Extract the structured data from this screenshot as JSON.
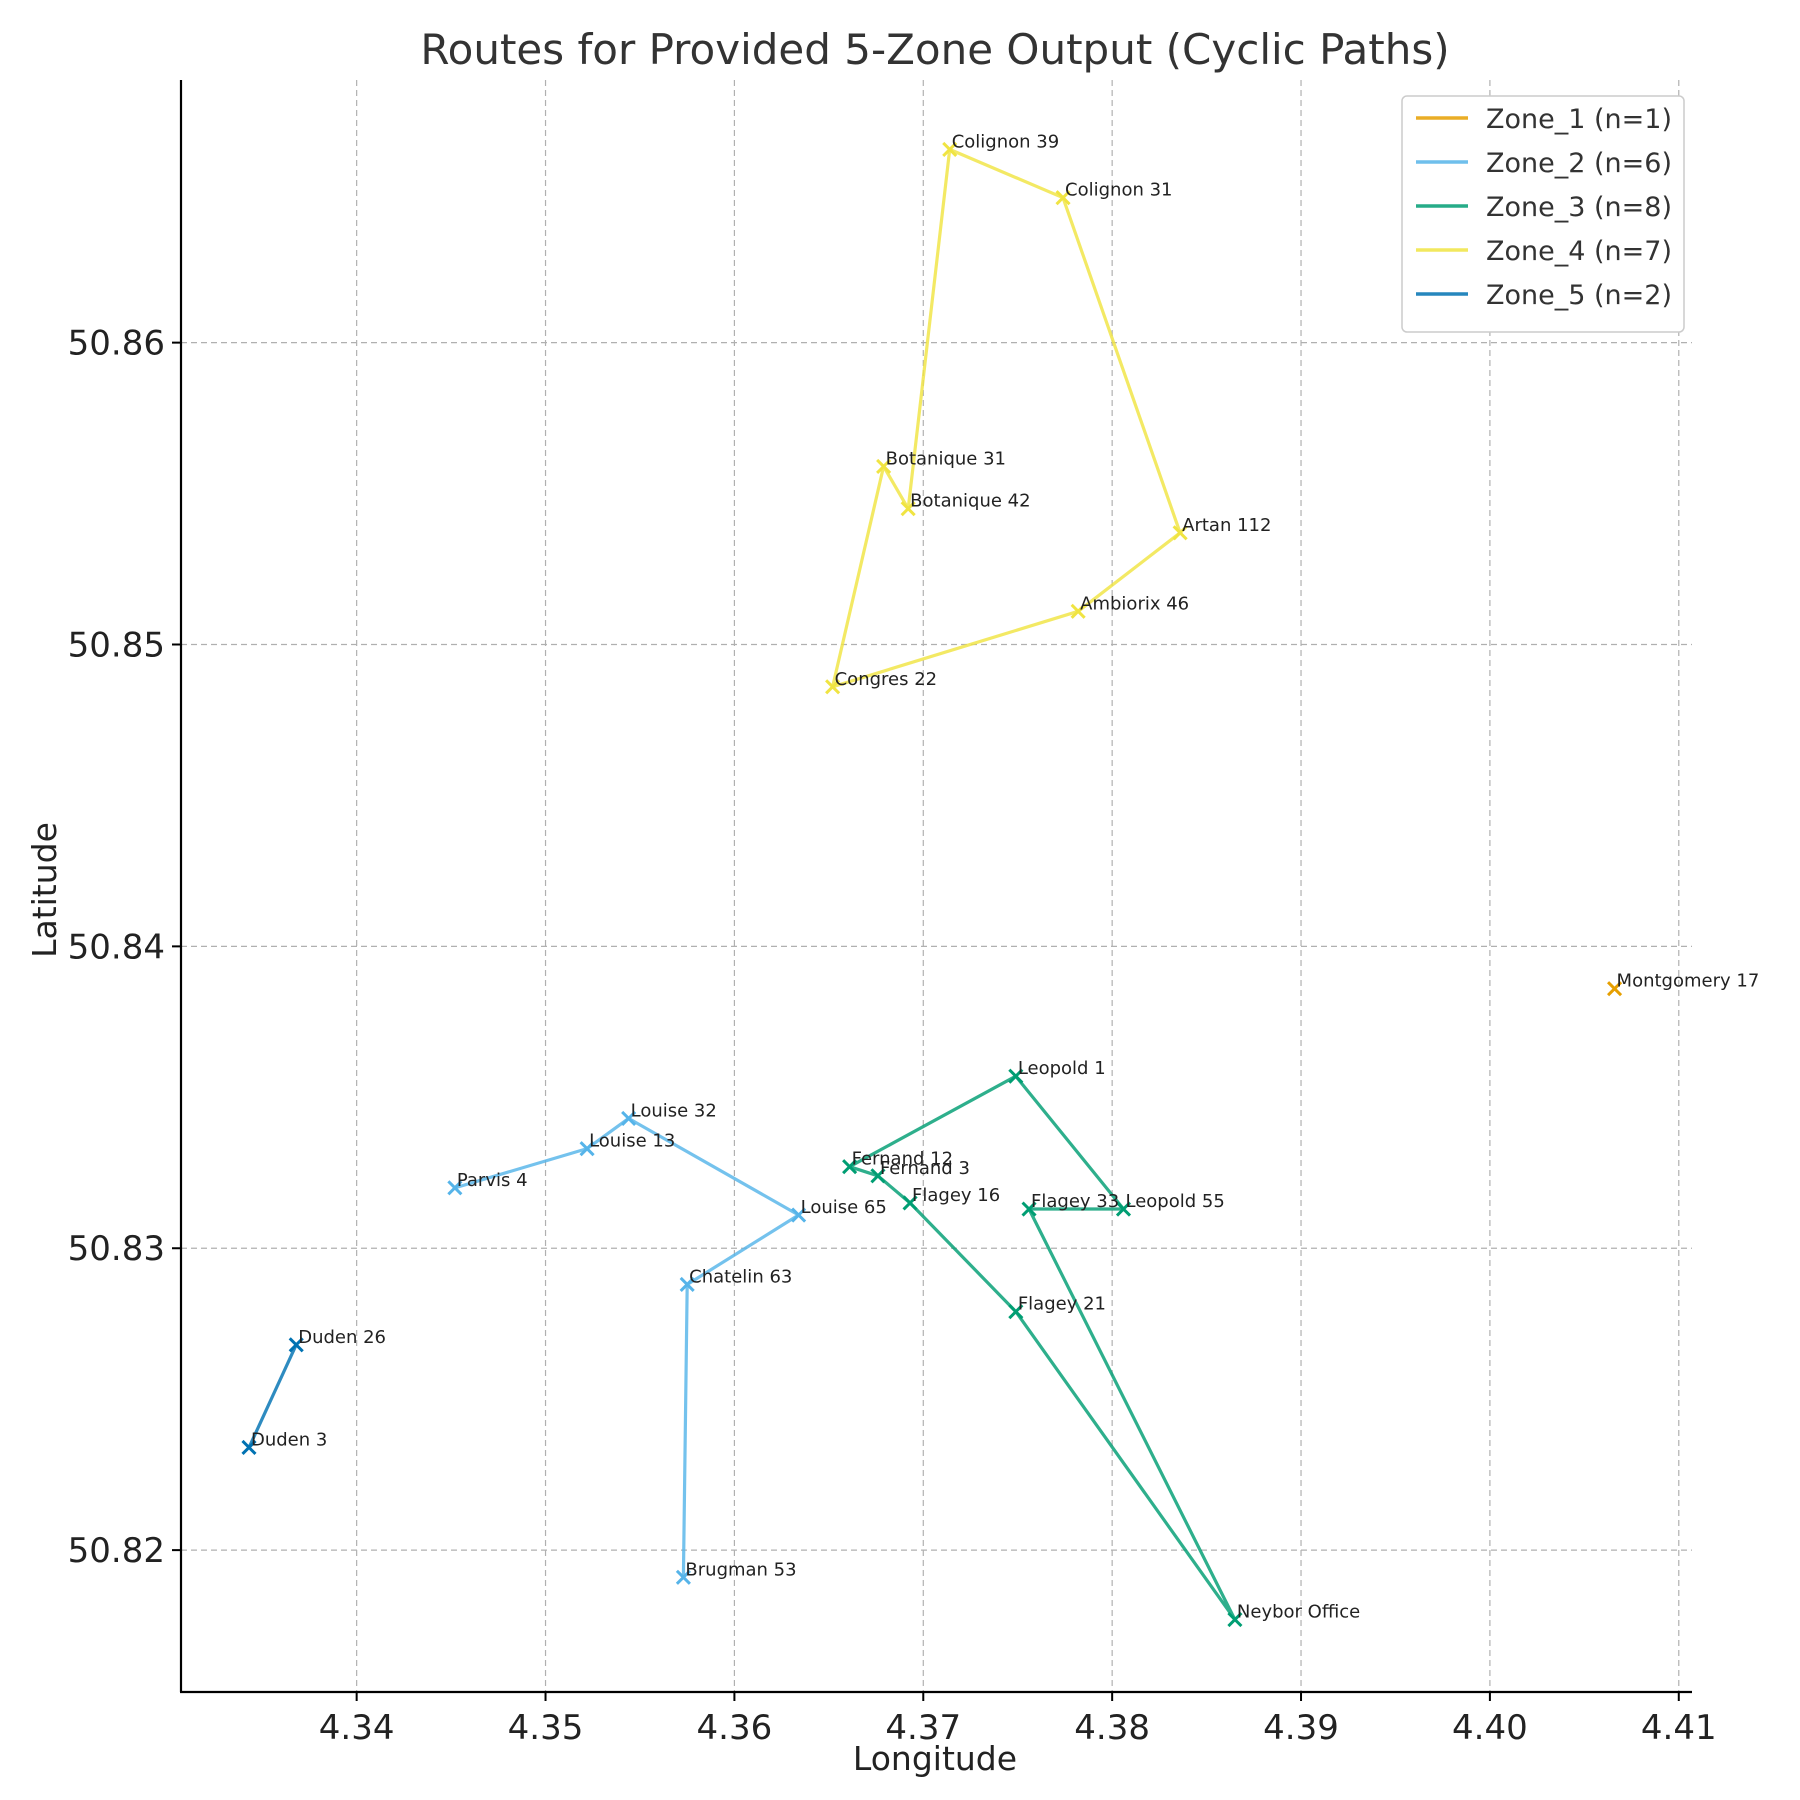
{
  "chart_data": {
    "type": "line",
    "title": "Routes for Provided 5-Zone Output (Cyclic Paths)",
    "xlabel": "Longitude",
    "ylabel": "Latitude",
    "xlim": [
      4.3307,
      4.4107
    ],
    "ylim": [
      50.8153,
      50.8687
    ],
    "xticks": [
      "4.34",
      "4.35",
      "4.36",
      "4.37",
      "4.38",
      "4.39",
      "4.40",
      "4.41"
    ],
    "yticks": [
      "50.82",
      "50.83",
      "50.84",
      "50.85",
      "50.86"
    ],
    "grid": true,
    "legend_position": "top-right",
    "marker": "x",
    "series": [
      {
        "name": "Zone_1 (n=1)",
        "color": "#E69F00",
        "points": [
          {
            "label": "Montgomery 17",
            "x": 4.4066,
            "y": 50.8386
          }
        ]
      },
      {
        "name": "Zone_2 (n=6)",
        "color": "#56B4E9",
        "points": [
          {
            "label": "Parvis 4",
            "x": 4.3452,
            "y": 50.832
          },
          {
            "label": "Louise 13",
            "x": 4.3522,
            "y": 50.8333
          },
          {
            "label": "Louise 32",
            "x": 4.3544,
            "y": 50.8343
          },
          {
            "label": "Louise 65",
            "x": 4.3634,
            "y": 50.8311
          },
          {
            "label": "Chatelin 63",
            "x": 4.3575,
            "y": 50.8288
          },
          {
            "label": "Brugman 53",
            "x": 4.3573,
            "y": 50.8191
          }
        ]
      },
      {
        "name": "Zone_3 (n=8)",
        "color": "#009E73",
        "points": [
          {
            "label": "Neybor Office",
            "x": 4.3865,
            "y": 50.8177
          },
          {
            "label": "Flagey 21",
            "x": 4.3749,
            "y": 50.8279
          },
          {
            "label": "Flagey 16",
            "x": 4.3693,
            "y": 50.8315
          },
          {
            "label": "Fernand 3",
            "x": 4.3676,
            "y": 50.8324
          },
          {
            "label": "Fernand 12",
            "x": 4.3661,
            "y": 50.8327
          },
          {
            "label": "Leopold 1",
            "x": 4.3749,
            "y": 50.8357
          },
          {
            "label": "Leopold 55",
            "x": 4.3806,
            "y": 50.8313
          },
          {
            "label": "Flagey 33",
            "x": 4.3756,
            "y": 50.8313
          }
        ],
        "cyclic": true
      },
      {
        "name": "Zone_4 (n=7)",
        "color": "#F0E442",
        "points": [
          {
            "label": "Congres 22",
            "x": 4.3652,
            "y": 50.8486
          },
          {
            "label": "Ambiorix 46",
            "x": 4.3782,
            "y": 50.8511
          },
          {
            "label": "Artan 112",
            "x": 4.3836,
            "y": 50.8537
          },
          {
            "label": "Colignon 31",
            "x": 4.3774,
            "y": 50.8648
          },
          {
            "label": "Colignon 39",
            "x": 4.3714,
            "y": 50.8664
          },
          {
            "label": "Botanique 42",
            "x": 4.3692,
            "y": 50.8545
          },
          {
            "label": "Botanique 31",
            "x": 4.3679,
            "y": 50.8559
          }
        ],
        "cyclic": true
      },
      {
        "name": "Zone_5 (n=2)",
        "color": "#0072B2",
        "points": [
          {
            "label": "Duden 3",
            "x": 4.3343,
            "y": 50.8234
          },
          {
            "label": "Duden 26",
            "x": 4.3368,
            "y": 50.8268
          }
        ]
      }
    ]
  }
}
